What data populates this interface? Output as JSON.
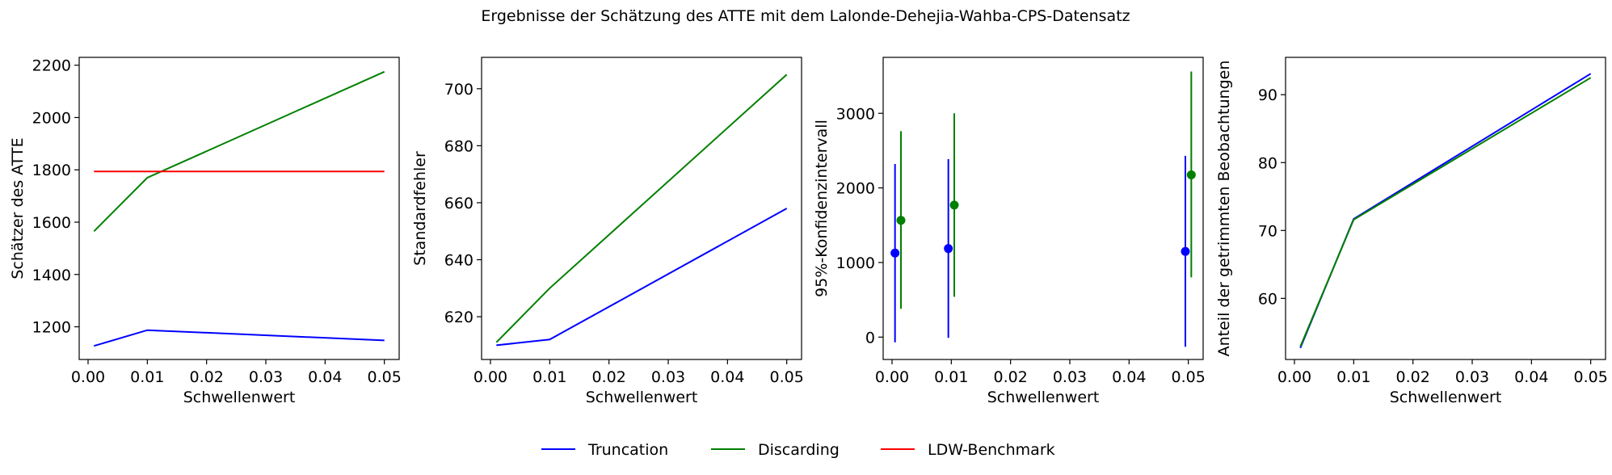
{
  "title": "Ergebnisse der Schätzung des ATTE mit dem Lalonde-Dehejia-Wahba-CPS-Datensatz",
  "legend": {
    "placement": "bottom-center",
    "entries": [
      {
        "label": "Truncation",
        "color": "#0000ff"
      },
      {
        "label": "Discarding",
        "color": "#008000"
      },
      {
        "label": "LDW-Benchmark",
        "color": "#ff0000"
      }
    ]
  },
  "chart_data": [
    {
      "type": "line",
      "xlabel": "Schwellenwert",
      "ylabel": "Schätzer des ATTE",
      "xlim": [
        -0.0015,
        0.0525
      ],
      "ylim": [
        1075,
        2230
      ],
      "xticks": [
        0.0,
        0.01,
        0.02,
        0.03,
        0.04,
        0.05
      ],
      "xtick_labels": [
        "0.00",
        "0.01",
        "0.02",
        "0.03",
        "0.04",
        "0.05"
      ],
      "yticks": [
        1200,
        1400,
        1600,
        1800,
        2000,
        2200
      ],
      "ytick_labels": [
        "1200",
        "1400",
        "1600",
        "1800",
        "2000",
        "2200"
      ],
      "x": [
        0.001,
        0.01,
        0.05
      ],
      "series": [
        {
          "name": "Truncation",
          "color": "#0000ff",
          "values": [
            1127,
            1187,
            1148
          ]
        },
        {
          "name": "Discarding",
          "color": "#008000",
          "values": [
            1565,
            1770,
            2175
          ]
        },
        {
          "name": "LDW-Benchmark",
          "color": "#ff0000",
          "values": [
            1794,
            1794,
            1794
          ]
        }
      ]
    },
    {
      "type": "line",
      "xlabel": "Schwellenwert",
      "ylabel": "Standardfehler",
      "xlim": [
        -0.0015,
        0.0525
      ],
      "ylim": [
        605,
        711
      ],
      "xticks": [
        0.0,
        0.01,
        0.02,
        0.03,
        0.04,
        0.05
      ],
      "xtick_labels": [
        "0.00",
        "0.01",
        "0.02",
        "0.03",
        "0.04",
        "0.05"
      ],
      "yticks": [
        620,
        640,
        660,
        680,
        700
      ],
      "ytick_labels": [
        "620",
        "640",
        "660",
        "680",
        "700"
      ],
      "x": [
        0.001,
        0.01,
        0.05
      ],
      "series": [
        {
          "name": "Truncation",
          "color": "#0000ff",
          "values": [
            610,
            612,
            658
          ]
        },
        {
          "name": "Discarding",
          "color": "#008000",
          "values": [
            611,
            630,
            705
          ]
        }
      ]
    },
    {
      "type": "scatter",
      "xlabel": "Schwellenwert",
      "ylabel": "95%-Konfidenzintervall",
      "xlim": [
        -0.0015,
        0.0525
      ],
      "ylim": [
        -300,
        3750
      ],
      "xticks": [
        0.0,
        0.01,
        0.02,
        0.03,
        0.04,
        0.05
      ],
      "xtick_labels": [
        "0.00",
        "0.01",
        "0.02",
        "0.03",
        "0.04",
        "0.05"
      ],
      "yticks": [
        0,
        1000,
        2000,
        3000
      ],
      "ytick_labels": [
        "0",
        "1000",
        "2000",
        "3000"
      ],
      "series": [
        {
          "name": "Truncation",
          "color": "#0000ff",
          "points": [
            {
              "x": 0.0005,
              "y": 1127,
              "low": -70,
              "high": 2320
            },
            {
              "x": 0.0095,
              "y": 1187,
              "low": -10,
              "high": 2385
            },
            {
              "x": 0.0495,
              "y": 1148,
              "low": -130,
              "high": 2430
            }
          ]
        },
        {
          "name": "Discarding",
          "color": "#008000",
          "points": [
            {
              "x": 0.0015,
              "y": 1565,
              "low": 380,
              "high": 2760
            },
            {
              "x": 0.0105,
              "y": 1770,
              "low": 540,
              "high": 3000
            },
            {
              "x": 0.0505,
              "y": 2175,
              "low": 800,
              "high": 3560
            }
          ]
        }
      ]
    },
    {
      "type": "line",
      "xlabel": "Schwellenwert",
      "ylabel": "Anteil der getrimmten Beobachtungen",
      "xlim": [
        -0.0015,
        0.0525
      ],
      "ylim": [
        51,
        95.5
      ],
      "xticks": [
        0.0,
        0.01,
        0.02,
        0.03,
        0.04,
        0.05
      ],
      "xtick_labels": [
        "0.00",
        "0.01",
        "0.02",
        "0.03",
        "0.04",
        "0.05"
      ],
      "yticks": [
        60,
        70,
        80,
        90
      ],
      "ytick_labels": [
        "60",
        "70",
        "80",
        "90"
      ],
      "x": [
        0.001,
        0.01,
        0.05
      ],
      "series": [
        {
          "name": "Truncation",
          "color": "#0000ff",
          "values": [
            52.7,
            71.7,
            93.1
          ]
        },
        {
          "name": "Discarding",
          "color": "#008000",
          "values": [
            52.9,
            71.6,
            92.5
          ]
        }
      ]
    }
  ]
}
